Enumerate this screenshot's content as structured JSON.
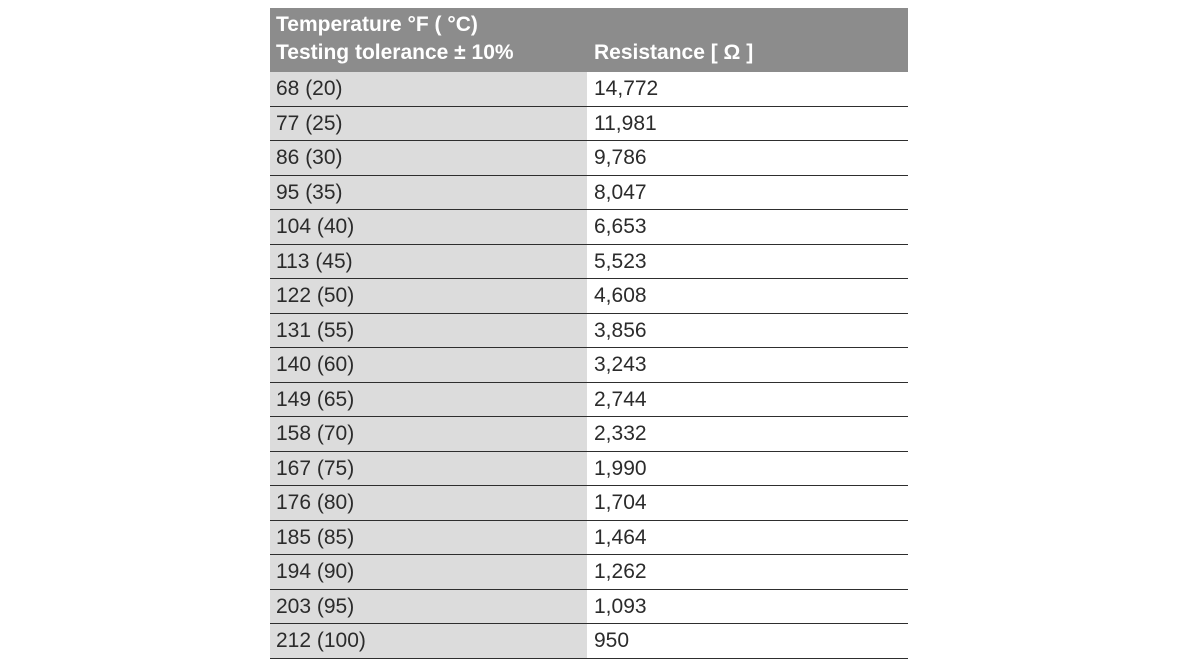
{
  "table": {
    "header": {
      "temperature_label": "Temperature  °F ( °C)",
      "tolerance_label": "Testing tolerance ± 10%",
      "resistance_label": "Resistance [ Ω ]"
    },
    "rows": [
      {
        "temperature": "68 (20)",
        "resistance": "14,772"
      },
      {
        "temperature": "77 (25)",
        "resistance": "11,981"
      },
      {
        "temperature": "86 (30)",
        "resistance": "9,786"
      },
      {
        "temperature": "95 (35)",
        "resistance": "8,047"
      },
      {
        "temperature": "104 (40)",
        "resistance": "6,653"
      },
      {
        "temperature": "113 (45)",
        "resistance": "5,523"
      },
      {
        "temperature": "122 (50)",
        "resistance": "4,608"
      },
      {
        "temperature": "131 (55)",
        "resistance": "3,856"
      },
      {
        "temperature": "140 (60)",
        "resistance": "3,243"
      },
      {
        "temperature": "149 (65)",
        "resistance": "2,744"
      },
      {
        "temperature": "158 (70)",
        "resistance": "2,332"
      },
      {
        "temperature": "167 (75)",
        "resistance": "1,990"
      },
      {
        "temperature": "176 (80)",
        "resistance": "1,704"
      },
      {
        "temperature": "185 (85)",
        "resistance": "1,464"
      },
      {
        "temperature": "194 (90)",
        "resistance": "1,262"
      },
      {
        "temperature": "203 (95)",
        "resistance": "1,093"
      },
      {
        "temperature": "212 (100)",
        "resistance": "950"
      }
    ]
  }
}
